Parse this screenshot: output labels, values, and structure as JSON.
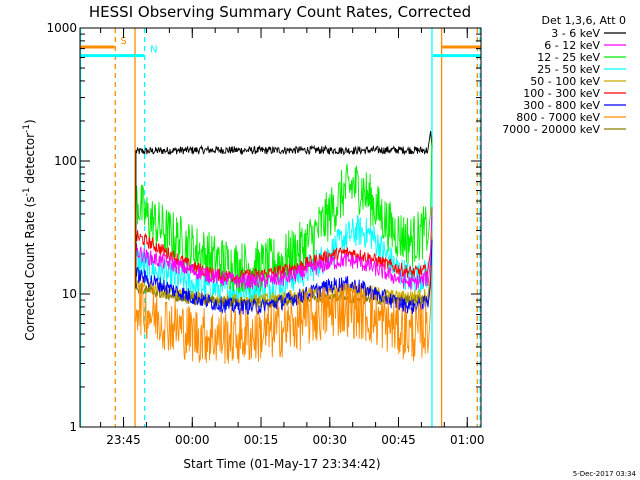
{
  "chart_data": {
    "type": "line",
    "title": "HESSI Observing Summary Count Rates, Corrected",
    "xlabel": "Start Time (01-May-17 23:34:42)",
    "ylabel_main": "Corrected Count Rate (s",
    "ylabel_sup1": "-1",
    "ylabel_mid": " detector",
    "ylabel_sup2": "-1",
    "ylabel_end": ")",
    "y_scale": "log",
    "ylim": [
      1,
      1000
    ],
    "y_ticks": [
      {
        "value": 1,
        "label": "1"
      },
      {
        "value": 10,
        "label": "10"
      },
      {
        "value": 100,
        "label": "100"
      },
      {
        "value": 1000,
        "label": "1000"
      }
    ],
    "x_unit": "minutes after 23:30",
    "xlim": [
      5.5,
      93
    ],
    "x_ticks": [
      {
        "value": 15,
        "label": "23:45"
      },
      {
        "value": 30,
        "label": "00:00"
      },
      {
        "value": 45,
        "label": "00:15"
      },
      {
        "value": 60,
        "label": "00:30"
      },
      {
        "value": 75,
        "label": "00:45"
      },
      {
        "value": 90,
        "label": "01:00"
      }
    ],
    "x_minor_step": 5,
    "legend_header": "Det 1,3,6, Att 0",
    "legend_position": "right, outside plot",
    "series": [
      {
        "name": "3 - 6 keV",
        "color": "#000000",
        "x": [
          18,
          25,
          35,
          45,
          55,
          65,
          75,
          82
        ],
        "y": [
          118,
          120,
          121,
          120,
          121,
          120,
          121,
          120
        ],
        "noise": 0.03
      },
      {
        "name": "6 - 12 keV",
        "color": "#ff00ff",
        "x": [
          18,
          20,
          25,
          30,
          35,
          40,
          45,
          50,
          55,
          60,
          63,
          66,
          70,
          75,
          78,
          81
        ],
        "y": [
          21,
          19,
          17,
          15,
          13.5,
          12.5,
          12.5,
          13,
          15,
          17,
          18,
          17.5,
          15.5,
          13,
          12,
          13
        ],
        "noise": 0.06
      },
      {
        "name": "12 - 25 keV",
        "color": "#00ee00",
        "x": [
          18,
          20,
          25,
          30,
          35,
          40,
          45,
          50,
          55,
          58,
          61,
          63,
          65,
          67,
          70,
          73,
          75,
          78,
          81
        ],
        "y": [
          50,
          38,
          28,
          22,
          18,
          16,
          16,
          18,
          24,
          32,
          45,
          58,
          65,
          62,
          45,
          32,
          28,
          25,
          30
        ],
        "noise": 0.2
      },
      {
        "name": "25 - 50 keV",
        "color": "#00ffff",
        "x": [
          18,
          20,
          25,
          30,
          35,
          40,
          45,
          50,
          55,
          60,
          63,
          66,
          69,
          72,
          75,
          78,
          81
        ],
        "y": [
          18,
          16,
          13.5,
          12,
          11,
          10.5,
          11,
          12.5,
          15,
          20,
          26,
          30,
          28,
          20,
          15,
          13,
          14
        ],
        "noise": 0.12
      },
      {
        "name": "50 - 100 keV",
        "color": "#ccaa00",
        "x": [
          18,
          25,
          35,
          45,
          55,
          65,
          75,
          82
        ],
        "y": [
          12,
          10,
          9,
          9,
          10,
          11,
          9.5,
          10
        ],
        "noise": 0.05
      },
      {
        "name": "100 - 300 keV",
        "color": "#ff0000",
        "x": [
          18,
          20,
          25,
          30,
          35,
          40,
          45,
          50,
          55,
          60,
          63,
          66,
          70,
          75,
          78,
          81
        ],
        "y": [
          27,
          25,
          20,
          16,
          14,
          13.5,
          14,
          15,
          17,
          19.5,
          20.5,
          20,
          18,
          15.5,
          14.5,
          15
        ],
        "noise": 0.05
      },
      {
        "name": "300 - 800 keV",
        "color": "#0000ff",
        "x": [
          18,
          20,
          25,
          30,
          35,
          40,
          45,
          50,
          55,
          60,
          63,
          66,
          70,
          75,
          78,
          81
        ],
        "y": [
          14,
          13,
          11,
          9.5,
          8.5,
          8,
          8,
          8.8,
          10,
          11.5,
          12,
          11.5,
          10,
          8.5,
          8,
          8.5
        ],
        "noise": 0.06
      },
      {
        "name": "800 - 7000 keV",
        "color": "#ff8c00",
        "x": [
          18,
          20,
          25,
          30,
          35,
          40,
          45,
          50,
          55,
          60,
          63,
          66,
          70,
          75,
          78,
          81
        ],
        "y": [
          8.5,
          7.5,
          6,
          5,
          4.8,
          4.8,
          5,
          5.5,
          6.5,
          7.5,
          8,
          7.5,
          6.5,
          5.5,
          5,
          5.5
        ],
        "noise": 0.22
      },
      {
        "name": "7000 - 20000 keV",
        "color": "#8b7d00",
        "x": [
          18,
          30,
          45,
          60,
          70,
          81
        ],
        "y": [
          11,
          9,
          8.5,
          9.5,
          9,
          9
        ],
        "noise": 0.04
      }
    ],
    "annotations": [
      {
        "label": "S",
        "color": "#ff8c00",
        "bar_x": [
          5.5,
          13
        ],
        "bar_y": 720
      },
      {
        "label": "N",
        "color": "#00ffff",
        "bar_x": [
          5.5,
          19.5
        ],
        "bar_y": 620
      },
      {
        "label": "",
        "color": "#ff8c00",
        "bar_x": [
          84.5,
          93
        ],
        "bar_y": 720
      },
      {
        "label": "",
        "color": "#00ffff",
        "bar_x": [
          82.5,
          93
        ],
        "bar_y": 620
      }
    ],
    "vertical_lines": [
      {
        "x": 5.6,
        "color": "#00ffff",
        "style": "solid"
      },
      {
        "x": 13.2,
        "color": "#ff8c00",
        "style": "dashed"
      },
      {
        "x": 17.5,
        "color": "#ff8c00",
        "style": "solid"
      },
      {
        "x": 19.6,
        "color": "#00ffff",
        "style": "dashed"
      },
      {
        "x": 82.3,
        "color": "#00ffff",
        "style": "solid"
      },
      {
        "x": 84.4,
        "color": "#ff8c00",
        "style": "solid"
      },
      {
        "x": 92.2,
        "color": "#ff8c00",
        "style": "dashed"
      },
      {
        "x": 92.8,
        "color": "#00ffff",
        "style": "dashed"
      }
    ],
    "timestamp": "5-Dec-2017 03:34"
  }
}
